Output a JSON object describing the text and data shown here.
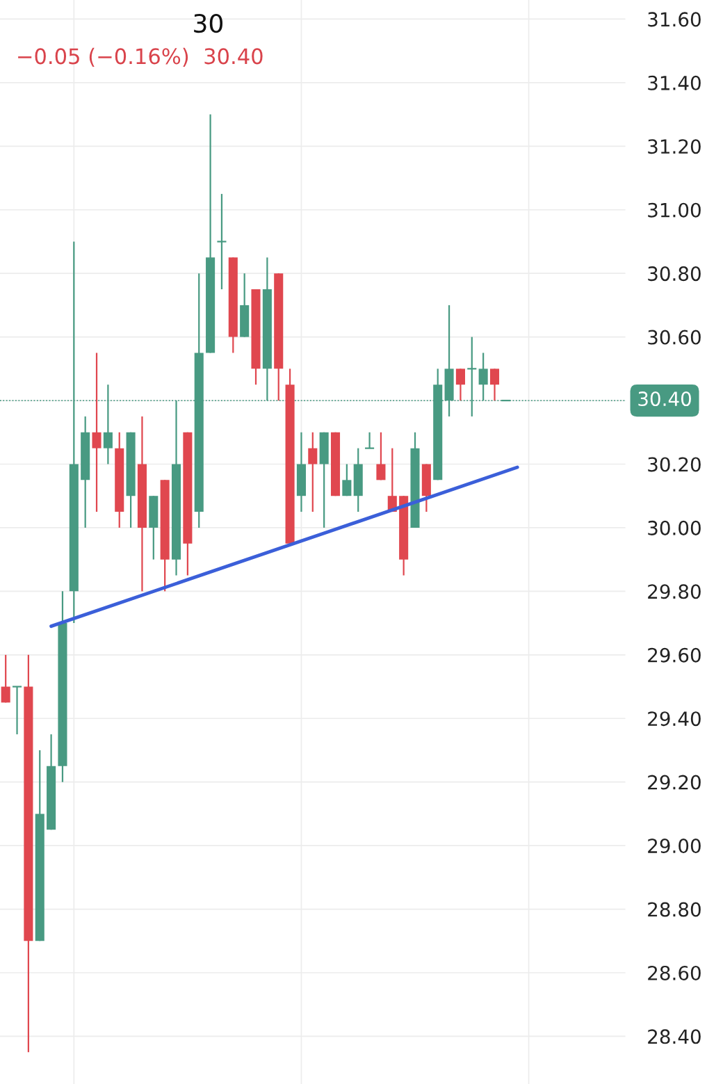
{
  "chart_data": {
    "type": "candlestick",
    "title": "30",
    "annotations": [
      "−0.05 (−0.16%)  30.40"
    ],
    "categories": [
      null,
      null,
      null,
      null,
      null,
      null,
      null,
      null,
      null,
      null,
      null,
      null,
      null,
      null,
      null,
      null,
      null,
      null,
      null,
      null,
      null,
      null,
      null,
      null,
      null,
      null,
      null,
      null,
      null,
      null,
      null,
      null,
      null,
      null,
      null,
      null,
      null,
      null,
      null,
      null,
      null,
      null,
      null,
      null,
      null,
      null,
      null,
      null,
      null,
      null,
      null,
      null,
      null,
      null,
      null
    ],
    "ohlc": [
      [
        29.5,
        29.6,
        29.45,
        29.45
      ],
      [
        29.5,
        29.5,
        29.35,
        29.5
      ],
      [
        29.5,
        29.6,
        28.35,
        28.7
      ],
      [
        28.7,
        29.3,
        28.7,
        29.1
      ],
      [
        29.05,
        29.35,
        29.05,
        29.25
      ],
      [
        29.25,
        29.8,
        29.2,
        29.7
      ],
      [
        29.8,
        30.9,
        29.7,
        30.2
      ],
      [
        30.15,
        30.35,
        30.0,
        30.3
      ],
      [
        30.3,
        30.55,
        30.05,
        30.25
      ],
      [
        30.25,
        30.45,
        30.2,
        30.3
      ],
      [
        30.25,
        30.3,
        30.0,
        30.05
      ],
      [
        30.1,
        30.3,
        30.0,
        30.3
      ],
      [
        30.2,
        30.35,
        29.8,
        30.0
      ],
      [
        30.0,
        30.1,
        29.9,
        30.1
      ],
      [
        30.15,
        30.15,
        29.8,
        29.9
      ],
      [
        29.9,
        30.4,
        29.85,
        30.2
      ],
      [
        30.3,
        30.3,
        29.85,
        29.95
      ],
      [
        30.05,
        30.8,
        30.0,
        30.55
      ],
      [
        30.55,
        31.3,
        30.55,
        30.85
      ],
      [
        30.9,
        31.05,
        30.75,
        30.9
      ],
      [
        30.85,
        30.85,
        30.55,
        30.6
      ],
      [
        30.6,
        30.8,
        30.6,
        30.7
      ],
      [
        30.75,
        30.75,
        30.45,
        30.5
      ],
      [
        30.5,
        30.85,
        30.4,
        30.75
      ],
      [
        30.8,
        30.8,
        30.4,
        30.5
      ],
      [
        30.45,
        30.5,
        29.95,
        29.95
      ],
      [
        30.1,
        30.3,
        30.05,
        30.2
      ],
      [
        30.25,
        30.3,
        30.05,
        30.2
      ],
      [
        30.2,
        30.3,
        30.0,
        30.3
      ],
      [
        30.3,
        30.3,
        30.1,
        30.1
      ],
      [
        30.1,
        30.2,
        30.1,
        30.15
      ],
      [
        30.1,
        30.25,
        30.05,
        30.2
      ],
      [
        30.25,
        30.3,
        30.25,
        30.25
      ],
      [
        30.2,
        30.3,
        30.15,
        30.15
      ],
      [
        30.1,
        30.25,
        30.05,
        30.05
      ],
      [
        30.1,
        30.1,
        29.85,
        29.9
      ],
      [
        30.0,
        30.3,
        30.0,
        30.25
      ],
      [
        30.2,
        30.2,
        30.05,
        30.1
      ],
      [
        30.15,
        30.5,
        30.15,
        30.45
      ],
      [
        30.4,
        30.7,
        30.35,
        30.5
      ],
      [
        30.5,
        30.5,
        30.4,
        30.45
      ],
      [
        30.5,
        30.6,
        30.35,
        30.5
      ],
      [
        30.45,
        30.55,
        30.4,
        30.5
      ],
      [
        30.5,
        30.5,
        30.4,
        30.45
      ],
      [
        30.4,
        30.4,
        30.4,
        30.4
      ],
      null,
      null,
      null,
      null,
      null,
      null,
      null,
      null,
      null,
      null
    ],
    "colors": [
      "#e0474f",
      "#489a82",
      "#e0474f",
      "#489a82",
      "#489a82",
      "#489a82",
      "#489a82",
      "#489a82",
      "#e0474f",
      "#489a82",
      "#e0474f",
      "#489a82",
      "#e0474f",
      "#489a82",
      "#e0474f",
      "#489a82",
      "#e0474f",
      "#489a82",
      "#489a82",
      "#489a82",
      "#e0474f",
      "#489a82",
      "#e0474f",
      "#489a82",
      "#e0474f",
      "#e0474f",
      "#489a82",
      "#e0474f",
      "#489a82",
      "#e0474f",
      "#489a82",
      "#489a82",
      "#489a82",
      "#e0474f",
      "#e0474f",
      "#e0474f",
      "#489a82",
      "#e0474f",
      "#489a82",
      "#489a82",
      "#e0474f",
      "#489a82",
      "#489a82",
      "#e0474f",
      "#489a82",
      null,
      null,
      null,
      null,
      null,
      null,
      null,
      null,
      null,
      null
    ],
    "series": [
      {
        "type": "line",
        "values": [
          null,
          null,
          null,
          null,
          29.69,
          null,
          null,
          null,
          null,
          null,
          null,
          null,
          null,
          null,
          null,
          null,
          null,
          null,
          null,
          null,
          null,
          null,
          null,
          null,
          null,
          null,
          null,
          null,
          null,
          null,
          null,
          null,
          null,
          null,
          null,
          null,
          null,
          null,
          null,
          null,
          null,
          null,
          null,
          null,
          null,
          30.19,
          null,
          null,
          null,
          null,
          null,
          null,
          null,
          null,
          null
        ],
        "color": "#3b5fd9"
      }
    ],
    "ylim": [
      28.25,
      31.66
    ],
    "yticks": [
      {
        "value": 28.4,
        "label": "28.40"
      },
      {
        "value": 28.6,
        "label": "28.60"
      },
      {
        "value": 28.8,
        "label": "28.80"
      },
      {
        "value": 29.0,
        "label": "29.00"
      },
      {
        "value": 29.2,
        "label": "29.20"
      },
      {
        "value": 29.4,
        "label": "29.40"
      },
      {
        "value": 29.6,
        "label": "29.60"
      },
      {
        "value": 29.8,
        "label": "29.80"
      },
      {
        "value": 30.0,
        "label": "30.00"
      },
      {
        "value": 30.2,
        "label": "30.20"
      },
      {
        "value": 30.4,
        "label": null
      },
      {
        "value": 30.6,
        "label": "30.60"
      },
      {
        "value": 30.8,
        "label": "30.80"
      },
      {
        "value": 31.0,
        "label": "31.00"
      },
      {
        "value": 31.2,
        "label": "31.20"
      },
      {
        "value": 31.4,
        "label": "31.40"
      },
      {
        "value": 31.6,
        "label": "31.60"
      }
    ],
    "ref_lines": [
      {
        "axis": "y",
        "value": 30.4,
        "label": "30.40",
        "color": "#489a82",
        "line_style": "dotted"
      }
    ],
    "grid": true,
    "tick_labels": "y"
  }
}
